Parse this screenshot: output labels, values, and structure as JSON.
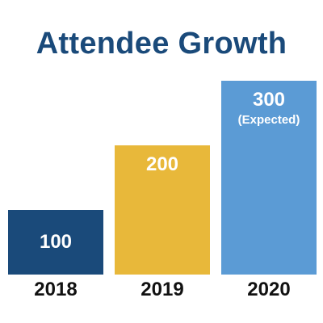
{
  "chart_data": {
    "type": "bar",
    "title": "Attendee Growth",
    "categories": [
      "2018",
      "2019",
      "2020"
    ],
    "values": [
      100,
      200,
      300
    ],
    "data_labels": [
      "100",
      "200",
      "300"
    ],
    "annotations": [
      "",
      "",
      "(Expected)"
    ],
    "colors": [
      "#1a4a7a",
      "#e8b83a",
      "#5b9bd5"
    ],
    "ylim": [
      0,
      300
    ],
    "grid": false,
    "xlabel": "",
    "ylabel": ""
  }
}
